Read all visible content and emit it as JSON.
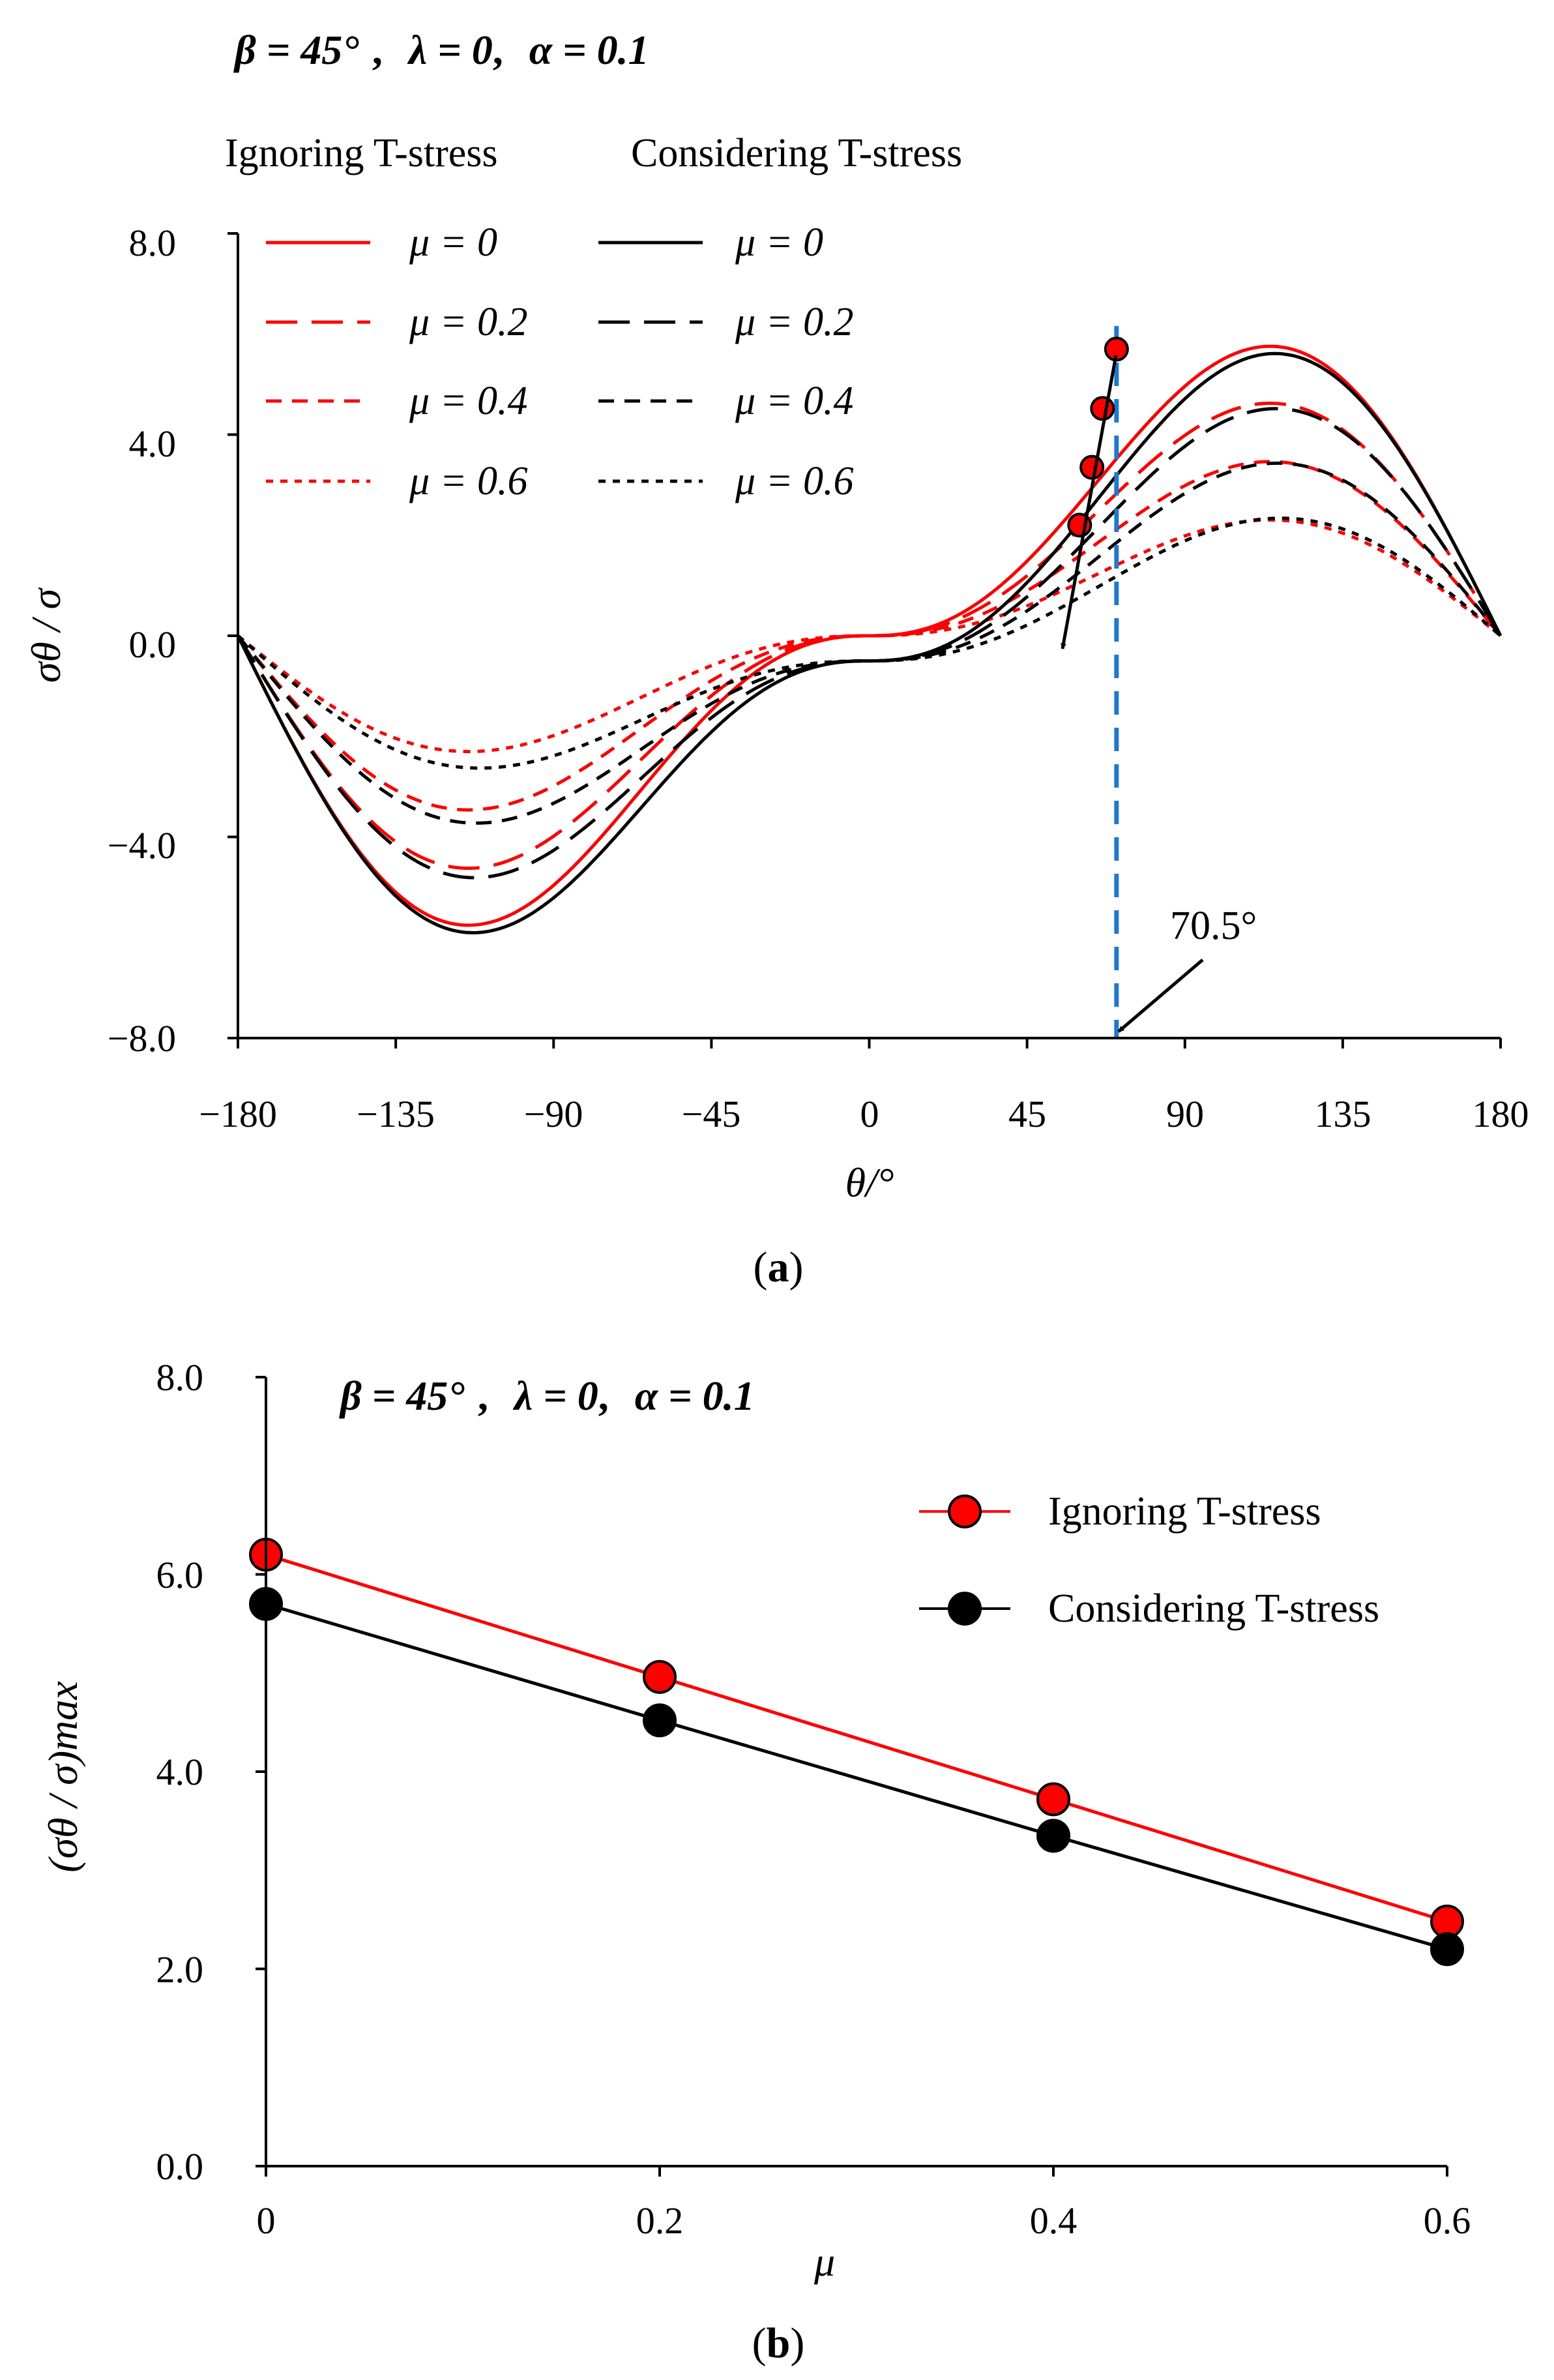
{
  "chart_data": [
    {
      "id": "a",
      "type": "line",
      "caption_label": "a",
      "params": {
        "beta": "β = 45°",
        "lambda": "λ = 0",
        "alpha": "α = 0.1"
      },
      "legend_headers": [
        "Ignoring T-stress",
        "Considering T-stress"
      ],
      "xlabel": "θ/°",
      "ylabel": "σθ / σ",
      "xlim": [
        -180,
        180
      ],
      "ylim": [
        -8,
        8
      ],
      "x_ticks": [
        "−180",
        "−135",
        "−90",
        "−45",
        "0",
        "45",
        "90",
        "135",
        "180"
      ],
      "y_ticks": [
        "8.0",
        "4.0",
        "0.0",
        "−4.0",
        "−8.0"
      ],
      "series": [
        {
          "name": "μ = 0",
          "group": "Ignoring T-stress",
          "color": "#ff0000",
          "dash": "solid",
          "amplitude": 6.2,
          "offset": 0
        },
        {
          "name": "μ = 0.2",
          "group": "Ignoring T-stress",
          "color": "#ff0000",
          "dash": "long",
          "amplitude": 4.98,
          "offset": 0
        },
        {
          "name": "μ = 0.4",
          "group": "Ignoring T-stress",
          "color": "#ff0000",
          "dash": "medium",
          "amplitude": 3.73,
          "offset": 0
        },
        {
          "name": "μ = 0.6",
          "group": "Ignoring T-stress",
          "color": "#ff0000",
          "dash": "short",
          "amplitude": 2.48,
          "offset": 0
        },
        {
          "name": "μ = 0",
          "group": "Considering T-stress",
          "color": "#000000",
          "dash": "solid",
          "amplitude": 6.2,
          "offset": -0.5
        },
        {
          "name": "μ = 0.2",
          "group": "Considering T-stress",
          "color": "#000000",
          "dash": "long",
          "amplitude": 5.02,
          "offset": -0.5
        },
        {
          "name": "μ = 0.4",
          "group": "Considering T-stress",
          "color": "#000000",
          "dash": "medium",
          "amplitude": 3.85,
          "offset": -0.5
        },
        {
          "name": "μ = 0.6",
          "group": "Considering T-stress",
          "color": "#000000",
          "dash": "short",
          "amplitude": 2.67,
          "offset": -0.5
        }
      ],
      "peak_markers": [
        {
          "x": 70.5,
          "y": 5.7
        },
        {
          "x": 66.5,
          "y": 4.52
        },
        {
          "x": 63.5,
          "y": 3.35
        },
        {
          "x": 60,
          "y": 2.2
        }
      ],
      "reference_line": {
        "x": 70.5,
        "color": "#1f78d1"
      },
      "annotation": "70.5°"
    },
    {
      "id": "b",
      "type": "line",
      "caption_label": "b",
      "params": {
        "beta": "β = 45°",
        "lambda": "λ = 0",
        "alpha": "α = 0.1"
      },
      "xlabel": "μ",
      "ylabel": "(σθ / σ)max",
      "xlim": [
        0,
        0.6
      ],
      "ylim": [
        0,
        8
      ],
      "x_ticks": [
        "0",
        "0.2",
        "0.4",
        "0.6"
      ],
      "y_ticks": [
        "8.0",
        "6.0",
        "4.0",
        "2.0",
        "0.0"
      ],
      "x": [
        0,
        0.2,
        0.4,
        0.6
      ],
      "series": [
        {
          "name": "Ignoring T-stress",
          "color": "#ff0000",
          "values": [
            6.2,
            4.96,
            3.72,
            2.48
          ]
        },
        {
          "name": "Considering T-stress",
          "color": "#000000",
          "values": [
            5.7,
            4.52,
            3.35,
            2.2
          ]
        }
      ],
      "legend_position": "top-right"
    }
  ]
}
